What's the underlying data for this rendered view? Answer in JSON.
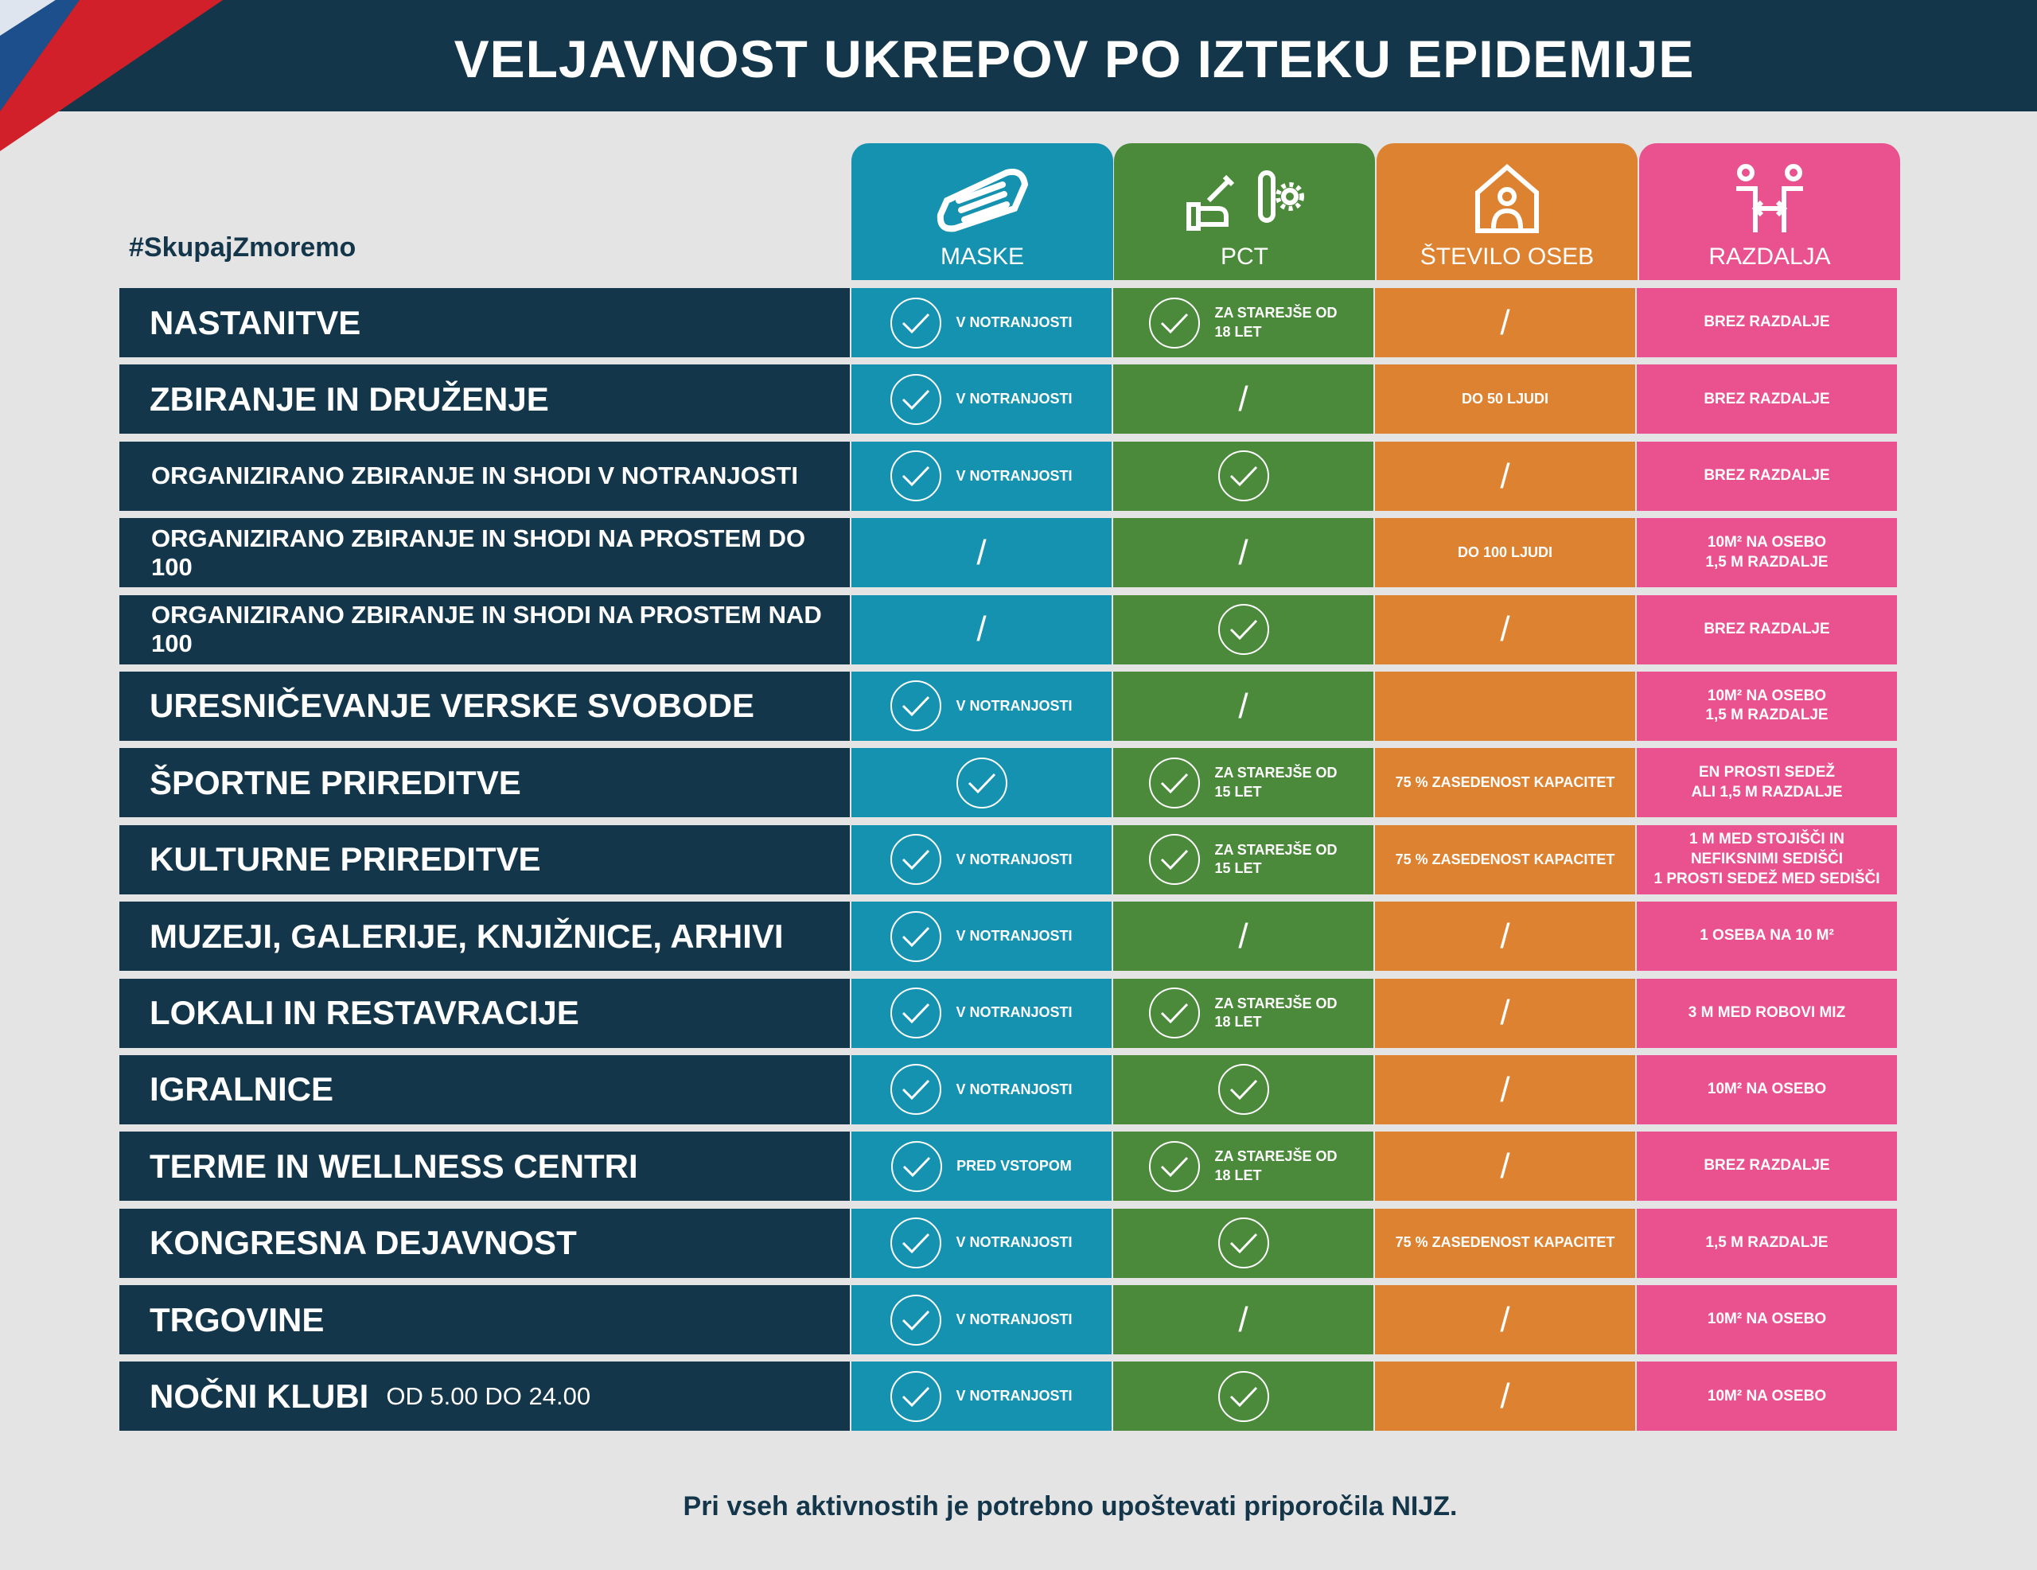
{
  "title": "VELJAVNOST UKREPOV PO IZTEKU EPIDEMIJE",
  "hashtag": "#SkupajZmoremo",
  "columns": [
    {
      "label": "MASKE",
      "icon": "face-mask-icon",
      "color": "#1592b0"
    },
    {
      "label": "PCT",
      "icon": "vaccine-test-icon",
      "color": "#4a8a3a"
    },
    {
      "label": "ŠTEVILO OSEB",
      "icon": "house-person-icon",
      "color": "#dd8230"
    },
    {
      "label": "RAZDALJA",
      "icon": "distance-people-icon",
      "color": "#e9528f"
    }
  ],
  "rows": [
    {
      "label": "NASTANITVE",
      "small": false,
      "maske": {
        "check": true,
        "text": "V NOTRANJOSTI"
      },
      "pct": {
        "check": true,
        "text": "ZA STAREJŠE OD\n18 LET"
      },
      "stevilo": "/",
      "razdalja": "BREZ RAZDALJE"
    },
    {
      "label": "ZBIRANJE IN DRUŽENJE",
      "small": false,
      "maske": {
        "check": true,
        "text": "V NOTRANJOSTI"
      },
      "pct": "/",
      "stevilo": "DO 50 LJUDI",
      "razdalja": "BREZ RAZDALJE"
    },
    {
      "label": "ORGANIZIRANO ZBIRANJE IN SHODI V NOTRANJOSTI",
      "small": true,
      "maske": {
        "check": true,
        "text": "V NOTRANJOSTI"
      },
      "pct": {
        "check": true,
        "text": ""
      },
      "stevilo": "/",
      "razdalja": "BREZ RAZDALJE"
    },
    {
      "label": "ORGANIZIRANO ZBIRANJE IN SHODI NA PROSTEM DO 100",
      "small": true,
      "maske": "/",
      "pct": "/",
      "stevilo": "DO 100 LJUDI",
      "razdalja": "10M² NA OSEBO\n1,5 M RAZDALJE"
    },
    {
      "label": "ORGANIZIRANO ZBIRANJE IN SHODI NA PROSTEM NAD 100",
      "small": true,
      "maske": "/",
      "pct": {
        "check": true,
        "text": ""
      },
      "stevilo": "/",
      "razdalja": "BREZ RAZDALJE"
    },
    {
      "label": "URESNIČEVANJE VERSKE SVOBODE",
      "small": false,
      "maske": {
        "check": true,
        "text": "V NOTRANJOSTI"
      },
      "pct": "/",
      "stevilo": "",
      "razdalja": "10M² NA OSEBO\n1,5 M RAZDALJE"
    },
    {
      "label": "ŠPORTNE PRIREDITVE",
      "small": false,
      "maske": {
        "check": true,
        "text": ""
      },
      "pct": {
        "check": true,
        "text": "ZA STAREJŠE OD\n15 LET"
      },
      "stevilo": "75 % ZASEDENOST KAPACITET",
      "razdalja": "EN PROSTI SEDEŽ\nALI 1,5 M RAZDALJE"
    },
    {
      "label": "KULTURNE PRIREDITVE",
      "small": false,
      "maske": {
        "check": true,
        "text": "V NOTRANJOSTI"
      },
      "pct": {
        "check": true,
        "text": "ZA STAREJŠE OD\n15 LET"
      },
      "stevilo": "75 % ZASEDENOST KAPACITET",
      "razdalja": "1 M MED STOJIŠČI IN\nNEFIKSNIMI SEDIŠČI\n1 PROSTI SEDEŽ MED SEDIŠČI"
    },
    {
      "label": "MUZEJI, GALERIJE, KNJIŽNICE, ARHIVI",
      "small": false,
      "maske": {
        "check": true,
        "text": "V NOTRANJOSTI"
      },
      "pct": "/",
      "stevilo": "/",
      "razdalja": "1 OSEBA NA 10 M²"
    },
    {
      "label": "LOKALI IN RESTAVRACIJE",
      "small": false,
      "maske": {
        "check": true,
        "text": "V NOTRANJOSTI"
      },
      "pct": {
        "check": true,
        "text": "ZA STAREJŠE OD\n18 LET"
      },
      "stevilo": "/",
      "razdalja": "3 M MED ROBOVI MIZ"
    },
    {
      "label": "IGRALNICE",
      "small": false,
      "maske": {
        "check": true,
        "text": "V NOTRANJOSTI"
      },
      "pct": {
        "check": true,
        "text": ""
      },
      "stevilo": "/",
      "razdalja": "10M² NA OSEBO"
    },
    {
      "label": "TERME IN WELLNESS CENTRI",
      "small": false,
      "maske": {
        "check": true,
        "text": "PRED VSTOPOM"
      },
      "pct": {
        "check": true,
        "text": "ZA STAREJŠE OD\n18 LET"
      },
      "stevilo": "/",
      "razdalja": "BREZ RAZDALJE"
    },
    {
      "label": "KONGRESNA DEJAVNOST",
      "small": false,
      "maske": {
        "check": true,
        "text": "V NOTRANJOSTI"
      },
      "pct": {
        "check": true,
        "text": ""
      },
      "stevilo": "75 % ZASEDENOST KAPACITET",
      "razdalja": "1,5 M RAZDALJE"
    },
    {
      "label": "TRGOVINE",
      "small": false,
      "maske": {
        "check": true,
        "text": "V NOTRANJOSTI"
      },
      "pct": "/",
      "stevilo": "/",
      "razdalja": "10M² NA OSEBO"
    },
    {
      "label": "NOČNI KLUBI",
      "sub": "OD 5.00 DO 24.00",
      "small": false,
      "maske": {
        "check": true,
        "text": "V NOTRANJOSTI"
      },
      "pct": {
        "check": true,
        "text": ""
      },
      "stevilo": "/",
      "razdalja": "10M² NA OSEBO"
    }
  ],
  "footer": "Pri vseh aktivnostih je potrebno upoštevati priporočila NIJZ."
}
